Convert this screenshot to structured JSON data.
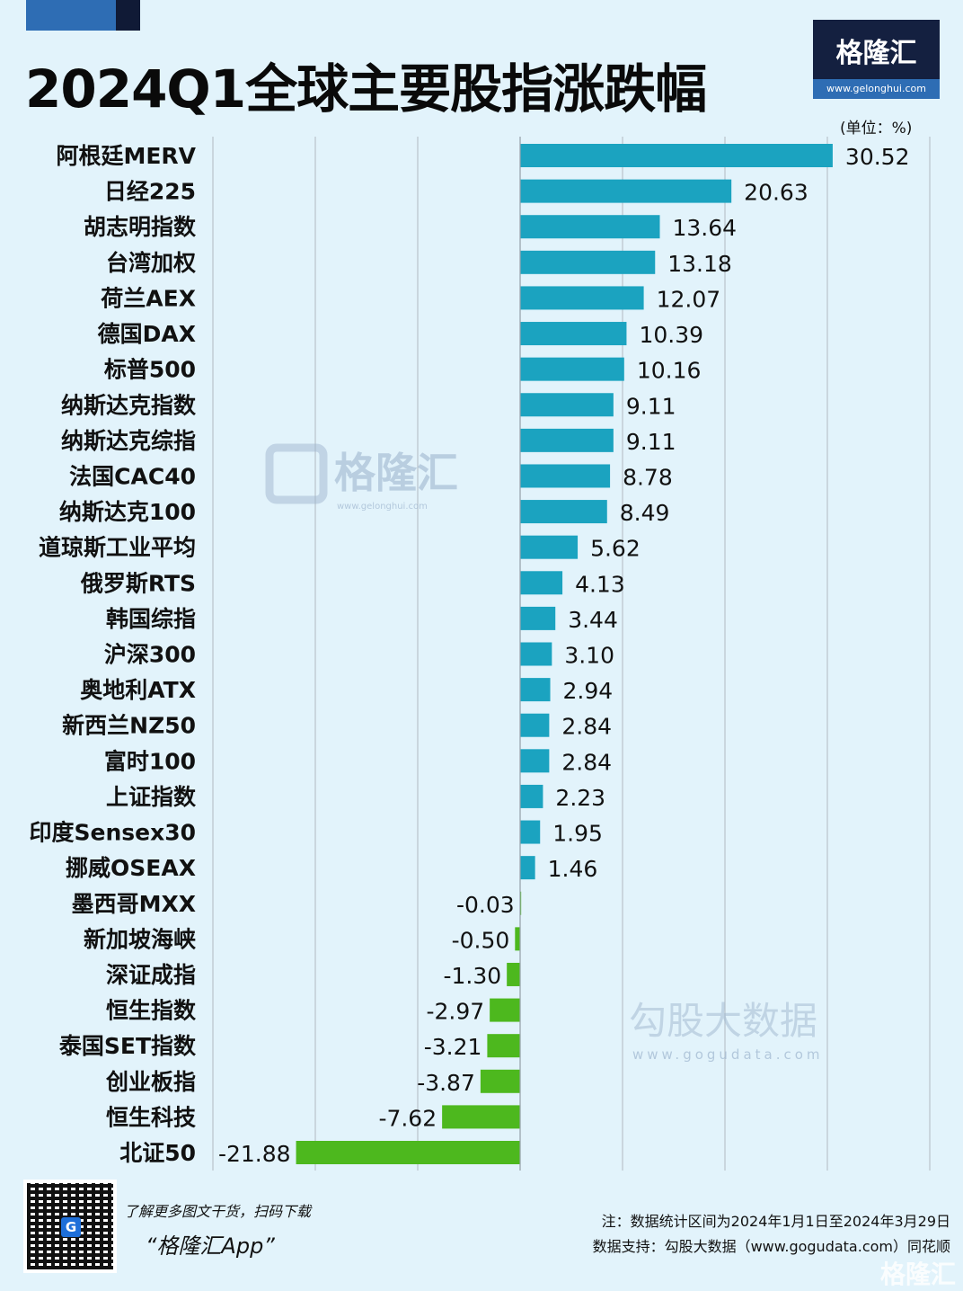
{
  "title": "2024Q1全球主要股指涨跌幅",
  "logo": {
    "brand": "格隆汇",
    "url": "www.gelonghui.com"
  },
  "unit": "(单位：%)",
  "watermark": {
    "left": "格隆汇",
    "left_url": "www.gelonghui.com",
    "right": "勾股大数据",
    "right_url": "www.gogudata.com",
    "corner": "格隆汇"
  },
  "footer": {
    "promo_line": "了解更多图文干货，扫码下载",
    "app_name": "“格隆汇App”",
    "note": "注：数据统计区间为2024年1月1日至2024年3月29日",
    "source": "数据支持：勾股大数据（www.gogudata.com）同花顺"
  },
  "colors": {
    "background": "#e2f3fb",
    "positive": "#1ba3c0",
    "negative": "#4db81e",
    "grid": "#b9c3ca"
  },
  "chart_data": {
    "type": "bar",
    "orientation": "horizontal",
    "title": "2024Q1全球主要股指涨跌幅",
    "unit": "%",
    "xlim": [
      -30,
      40
    ],
    "grid": true,
    "data_labels": true,
    "categories": [
      "阿根廷MERV",
      "日经225",
      "胡志明指数",
      "台湾加权",
      "荷兰AEX",
      "德国DAX",
      "标普500",
      "纳斯达克指数",
      "纳斯达克综指",
      "法国CAC40",
      "纳斯达克100",
      "道琼斯工业平均",
      "俄罗斯RTS",
      "韩国综指",
      "沪深300",
      "奥地利ATX",
      "新西兰NZ50",
      "富时100",
      "上证指数",
      "印度Sensex30",
      "挪威OSEAX",
      "墨西哥MXX",
      "新加坡海峡",
      "深证成指",
      "恒生指数",
      "泰国SET指数",
      "创业板指",
      "恒生科技",
      "北证50"
    ],
    "values": [
      30.52,
      20.63,
      13.64,
      13.18,
      12.07,
      10.39,
      10.16,
      9.11,
      9.11,
      8.78,
      8.49,
      5.62,
      4.13,
      3.44,
      3.1,
      2.94,
      2.84,
      2.84,
      2.23,
      1.95,
      1.46,
      -0.03,
      -0.5,
      -1.3,
      -2.97,
      -3.21,
      -3.87,
      -7.62,
      -21.88
    ]
  }
}
